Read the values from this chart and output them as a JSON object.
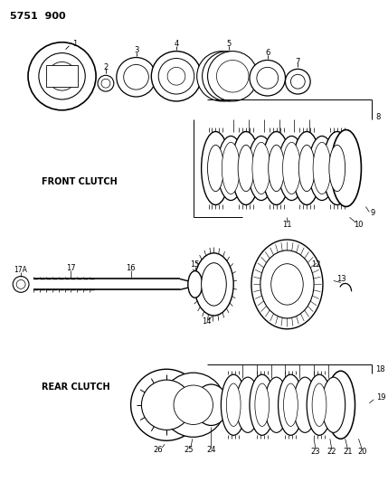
{
  "title": "5751  900",
  "bg_color": "#ffffff",
  "lc": "#000000",
  "front_clutch_label": "FRONT CLUTCH",
  "rear_clutch_label": "REAR CLUTCH",
  "fig_width": 4.29,
  "fig_height": 5.33,
  "dpi": 100
}
